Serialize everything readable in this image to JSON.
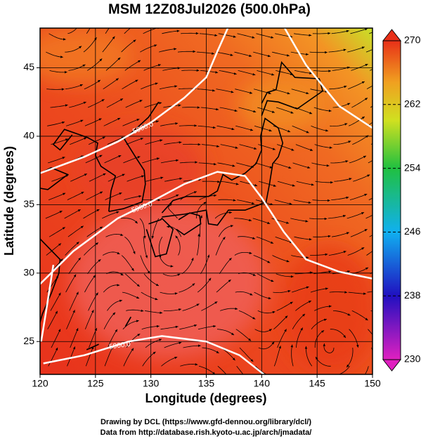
{
  "chart_data": {
    "type": "map",
    "title": "MSM 12Z08Jul2026 (500.0hPa)",
    "xlabel": "Longitude (degrees)",
    "ylabel": "Latitude  (degrees)",
    "xlim": [
      120,
      150
    ],
    "xticks": [
      120,
      125,
      130,
      135,
      140,
      145,
      150
    ],
    "ylim": [
      22.6,
      47.9
    ],
    "yticks": [
      25,
      30,
      35,
      40,
      45
    ],
    "grid": true,
    "colorbar": {
      "lim": [
        230,
        270
      ],
      "ticks": [
        230,
        238,
        246,
        254,
        262,
        270
      ]
    },
    "contours": [
      {
        "label": "5900.0"
      },
      {
        "label": "5900.0"
      },
      {
        "label": "5900.0"
      }
    ]
  },
  "footer": [
    "Drawing by DCL (https://www.gfd-dennou.org/library/dcl/)",
    "Data from http://database.rish.kyoto-u.ac.jp/arch/jmadata/"
  ]
}
